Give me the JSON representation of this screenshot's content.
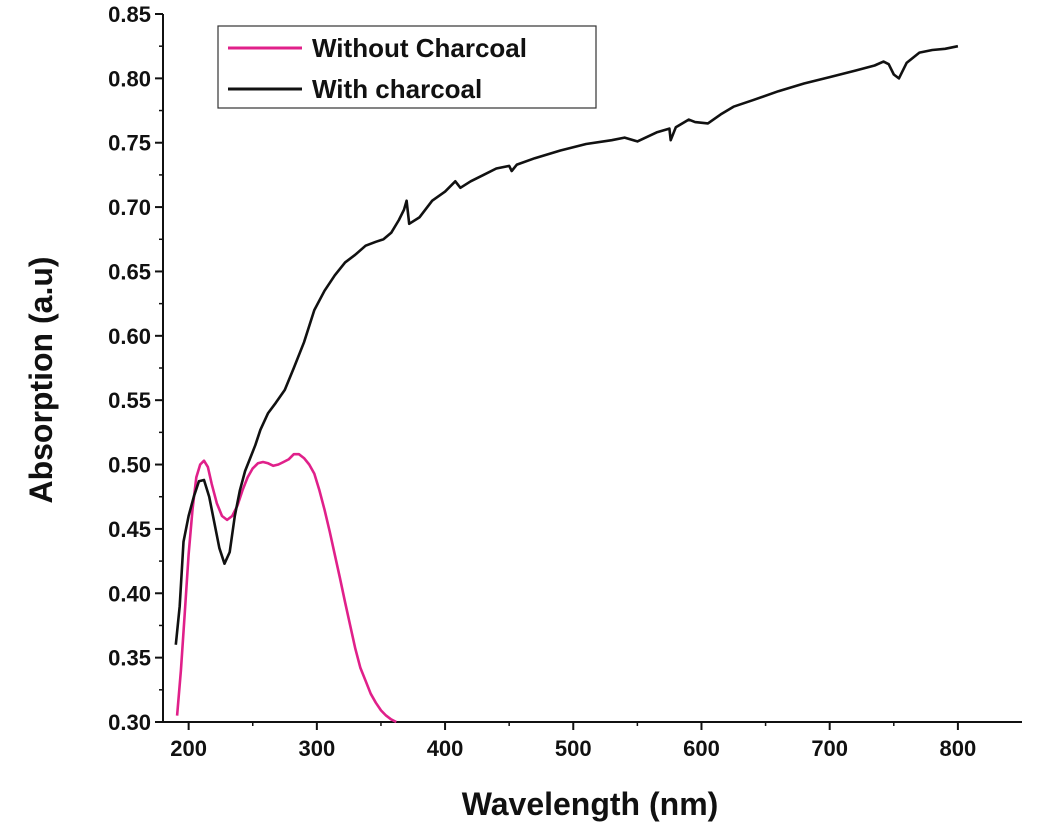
{
  "chart_data": {
    "type": "line",
    "xlabel": "Wavelength (nm)",
    "ylabel": "Absorption (a.u)",
    "xlim": [
      180,
      850
    ],
    "ylim": [
      0.3,
      0.85
    ],
    "x_ticks": [
      200,
      300,
      400,
      500,
      600,
      700,
      800
    ],
    "x_tick_labels": [
      "200",
      "300",
      "400",
      "500",
      "600",
      "700",
      "800"
    ],
    "y_ticks": [
      0.3,
      0.35,
      0.4,
      0.45,
      0.5,
      0.55,
      0.6,
      0.65,
      0.7,
      0.75,
      0.8,
      0.85
    ],
    "y_tick_labels": [
      "0.30",
      "0.35",
      "0.40",
      "0.45",
      "0.50",
      "0.55",
      "0.60",
      "0.65",
      "0.70",
      "0.75",
      "0.80",
      "0.85"
    ],
    "grid": false,
    "legend_position": "top-left",
    "series": [
      {
        "name": "Without Charcoal",
        "color": "#e0208a",
        "x": [
          191,
          194,
          197,
          200,
          203,
          206,
          209,
          212,
          215,
          218,
          222,
          226,
          230,
          234,
          238,
          242,
          246,
          250,
          254,
          258,
          262,
          266,
          270,
          274,
          278,
          282,
          286,
          290,
          294,
          298,
          302,
          306,
          310,
          314,
          318,
          322,
          326,
          330,
          334,
          338,
          342,
          346,
          350,
          354,
          358,
          362
        ],
        "y": [
          0.305,
          0.34,
          0.385,
          0.43,
          0.465,
          0.49,
          0.5,
          0.503,
          0.498,
          0.485,
          0.47,
          0.46,
          0.457,
          0.46,
          0.468,
          0.48,
          0.49,
          0.497,
          0.501,
          0.502,
          0.501,
          0.499,
          0.5,
          0.502,
          0.504,
          0.508,
          0.508,
          0.505,
          0.5,
          0.493,
          0.48,
          0.465,
          0.448,
          0.43,
          0.412,
          0.393,
          0.375,
          0.357,
          0.342,
          0.332,
          0.322,
          0.315,
          0.309,
          0.305,
          0.302,
          0.3
        ]
      },
      {
        "name": "With charcoal",
        "color": "#111111",
        "x": [
          190,
          193,
          196,
          200,
          204,
          208,
          212,
          216,
          220,
          224,
          228,
          232,
          236,
          240,
          244,
          248,
          252,
          256,
          262,
          268,
          275,
          282,
          290,
          298,
          306,
          314,
          322,
          330,
          338,
          346,
          352,
          358,
          364,
          368,
          370,
          372,
          380,
          390,
          400,
          408,
          412,
          420,
          430,
          440,
          450,
          452,
          456,
          470,
          490,
          510,
          530,
          540,
          550,
          565,
          575,
          576,
          580,
          590,
          595,
          605,
          615,
          625,
          640,
          660,
          680,
          700,
          720,
          735,
          742,
          746,
          750,
          754,
          760,
          770,
          780,
          790,
          800
        ],
        "y": [
          0.36,
          0.39,
          0.44,
          0.46,
          0.475,
          0.487,
          0.488,
          0.475,
          0.455,
          0.435,
          0.423,
          0.432,
          0.46,
          0.48,
          0.495,
          0.505,
          0.515,
          0.527,
          0.54,
          0.548,
          0.558,
          0.575,
          0.595,
          0.62,
          0.635,
          0.647,
          0.657,
          0.663,
          0.67,
          0.673,
          0.675,
          0.68,
          0.69,
          0.698,
          0.705,
          0.687,
          0.692,
          0.705,
          0.712,
          0.72,
          0.715,
          0.72,
          0.725,
          0.73,
          0.732,
          0.728,
          0.733,
          0.738,
          0.744,
          0.749,
          0.752,
          0.754,
          0.751,
          0.758,
          0.761,
          0.752,
          0.762,
          0.768,
          0.766,
          0.765,
          0.772,
          0.778,
          0.783,
          0.79,
          0.796,
          0.801,
          0.806,
          0.81,
          0.813,
          0.811,
          0.803,
          0.8,
          0.812,
          0.82,
          0.822,
          0.823,
          0.825
        ]
      }
    ]
  }
}
